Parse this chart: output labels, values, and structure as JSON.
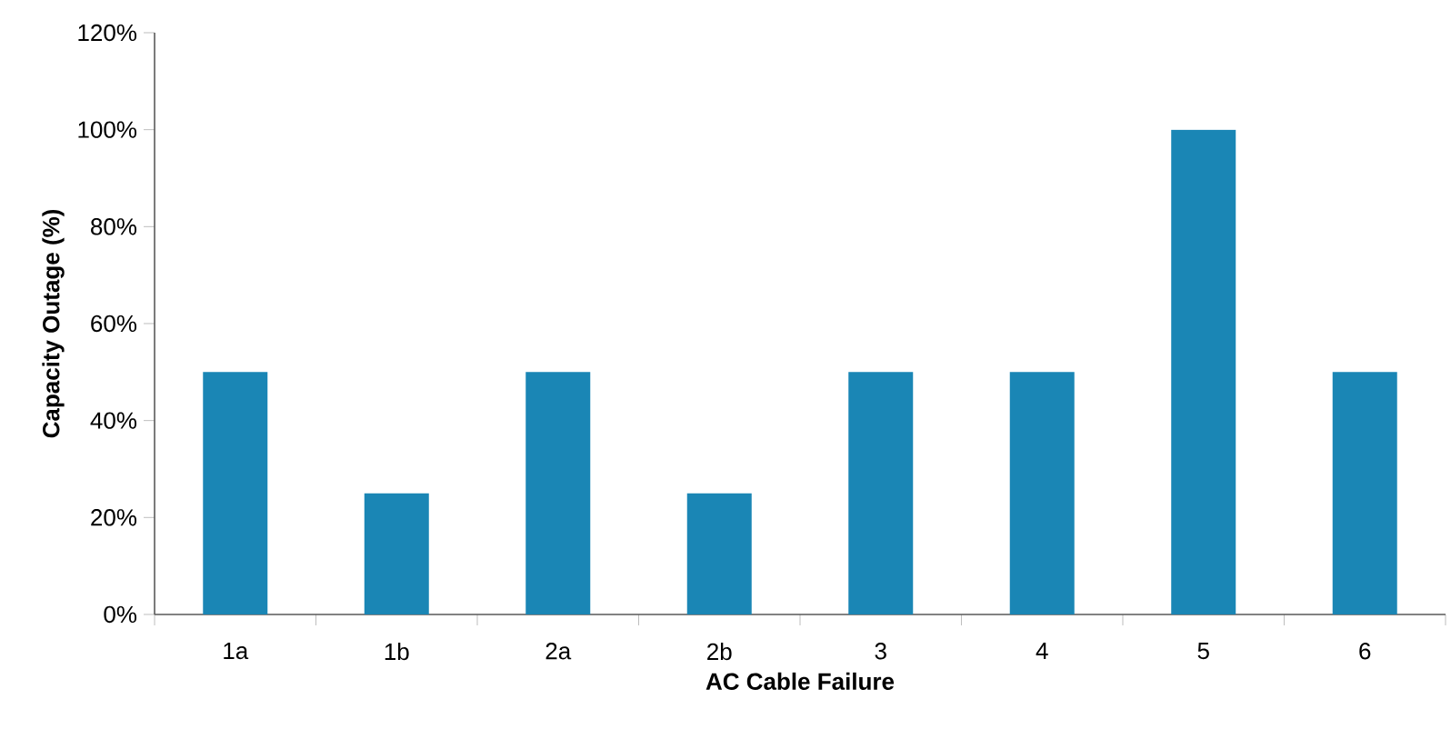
{
  "chart_data": {
    "type": "bar",
    "xlabel": "AC Cable Failure",
    "ylabel": "Capacity Outage (%)",
    "categories": [
      "1a",
      "1b",
      "2a",
      "2b",
      "3",
      "4",
      "5",
      "6"
    ],
    "values": [
      50,
      25,
      50,
      25,
      50,
      50,
      100,
      50
    ],
    "color": "#1a86b5",
    "ylim": [
      0,
      120
    ],
    "yticks": [
      {
        "value": 0,
        "label": "0%"
      },
      {
        "value": 20,
        "label": "20%"
      },
      {
        "value": 40,
        "label": "40%"
      },
      {
        "value": 60,
        "label": "60%"
      },
      {
        "value": 80,
        "label": "80%"
      },
      {
        "value": 100,
        "label": "100%"
      },
      {
        "value": 120,
        "label": "120%"
      }
    ],
    "grid": false
  }
}
